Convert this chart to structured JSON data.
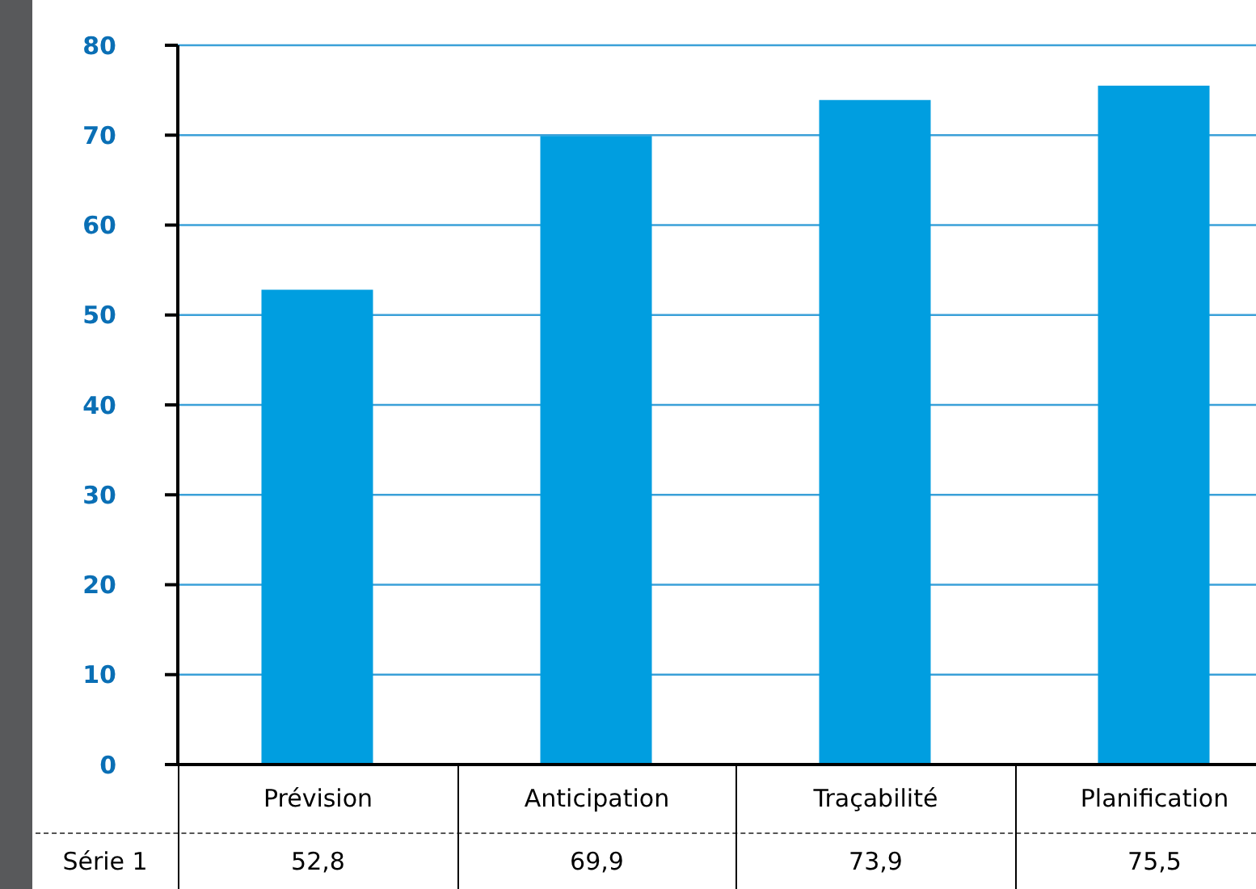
{
  "chart_data": {
    "type": "bar",
    "categories": [
      "Prévision",
      "Anticipation",
      "Traçabilité",
      "Planification"
    ],
    "series": [
      {
        "name": "Série 1",
        "color": "#009ee0",
        "values": [
          52.8,
          69.9,
          73.9,
          75.5
        ],
        "value_labels": [
          "52,8",
          "69,9",
          "73,9",
          "75,5"
        ]
      }
    ],
    "ylim": [
      0,
      80
    ],
    "yticks": [
      0,
      10,
      20,
      30,
      40,
      50,
      60,
      70,
      80
    ],
    "grid": "y",
    "legend": false
  }
}
